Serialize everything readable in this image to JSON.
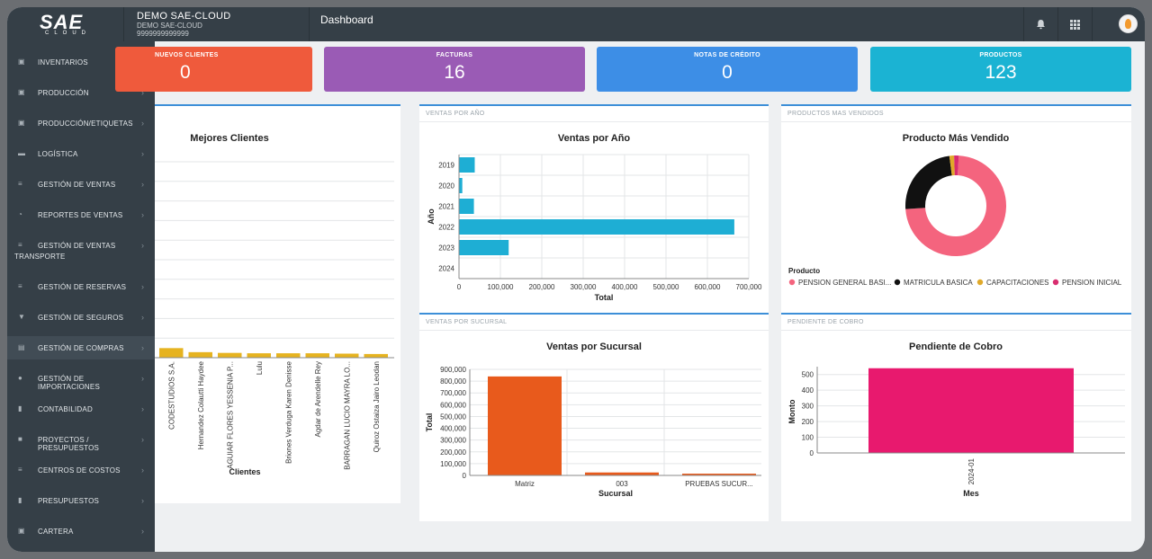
{
  "header": {
    "logo_text": "SAE",
    "logo_sub": "CLOUD",
    "company_name": "DEMO SAE-CLOUD",
    "company_line2": "DEMO SAE-CLOUD",
    "company_line3": "9999999999999",
    "page_title": "Dashboard",
    "bell_icon": "bell-icon",
    "apps_icon": "grid-icon"
  },
  "sidebar": {
    "items": [
      {
        "label": "INVENTARIOS",
        "icon": "cubes-icon"
      },
      {
        "label": "PRODUCCIÓN",
        "icon": "cubes-icon"
      },
      {
        "label": "PRODUCCIÓN/ETIQUETAS",
        "icon": "cubes-icon"
      },
      {
        "label": "LOGÍSTICA",
        "icon": "truck-icon"
      },
      {
        "label": "GESTIÓN DE VENTAS",
        "icon": "list-icon"
      },
      {
        "label": "REPORTES DE VENTAS",
        "icon": "pie-icon"
      },
      {
        "label": "GESTIÓN DE VENTAS",
        "label2": "TRANSPORTE",
        "icon": "list-icon"
      },
      {
        "label": "GESTIÓN DE RESERVAS",
        "icon": "list-icon"
      },
      {
        "label": "GESTIÓN DE SEGUROS",
        "icon": "shield-icon"
      },
      {
        "label": "GESTIÓN DE COMPRAS",
        "icon": "cart-icon"
      },
      {
        "label": "GESTIÓN DE IMPORTACIONES",
        "icon": "globe-icon"
      },
      {
        "label": "CONTABILIDAD",
        "icon": "book-icon"
      },
      {
        "label": "PROYECTOS / PRESUPUESTOS",
        "icon": "folder-icon"
      },
      {
        "label": "CENTROS DE COSTOS",
        "icon": "list-icon"
      },
      {
        "label": "PRESUPUESTOS",
        "icon": "book-icon"
      },
      {
        "label": "CARTERA",
        "icon": "wallet-icon"
      }
    ]
  },
  "stats": [
    {
      "title": "NUEVOS CLIENTES",
      "value": "0",
      "color": "#ef5a3c"
    },
    {
      "title": "FACTURAS",
      "value": "16",
      "color": "#9a5bb5"
    },
    {
      "title": "NOTAS DE CRÉDITO",
      "value": "0",
      "color": "#3d8ee6"
    },
    {
      "title": "PRODUCTOS",
      "value": "123",
      "color": "#1bb3d3"
    }
  ],
  "panels": {
    "ventas_anio": "VENTAS POR AÑO",
    "productos_vendidos": "PRODUCTOS MAS VENDIDOS",
    "ventas_sucursal": "VENTAS POR SUCURSAL",
    "pendiente_cobro": "PENDIENTE DE COBRO"
  },
  "chart_data": [
    {
      "id": "mejores",
      "type": "bar",
      "title": "Mejores Clientes",
      "xlabel": "Clientes",
      "ylabel": "",
      "categories": [
        "CODESTUDIOS S.A.",
        "Hernandez Colautti Haydee",
        "AGUIAR FLORES YESSENIA P...",
        "Lulu",
        "Briones Verduga Karen Denisse",
        "Agdar de Arendelle Rey",
        "BARRAGAN LUCIO MAYRA LO...",
        "Quiroz Ostaiza Jairo Leodan"
      ],
      "values": [
        26,
        15,
        13,
        12,
        12,
        12,
        11,
        10
      ],
      "ylim": [
        0,
        250
      ],
      "grid": true,
      "color": "#e6b320"
    },
    {
      "id": "anio",
      "type": "bar",
      "orientation": "horizontal",
      "title": "Ventas por Año",
      "xlabel": "Total",
      "ylabel": "Año",
      "categories": [
        "2019",
        "2020",
        "2021",
        "2022",
        "2023",
        "2024"
      ],
      "values": [
        38000,
        8000,
        36000,
        665000,
        120000,
        0
      ],
      "xlim": [
        0,
        700000
      ],
      "xticks": [
        "0",
        "100,000",
        "200,000",
        "300,000",
        "400,000",
        "500,000",
        "600,000",
        "700,000"
      ],
      "grid": true,
      "color": "#1eaed4"
    },
    {
      "id": "producto",
      "type": "pie",
      "title": "Producto Más Vendido",
      "legend_title": "Producto",
      "legend_position": "bottom",
      "labels": [
        "PENSION GENERAL BASI...",
        "MATRICULA BASICA",
        "CAPACITACIONES",
        "PENSION INICIAL"
      ],
      "values": [
        73,
        24,
        1.5,
        1.5
      ],
      "colors": [
        "#f4647e",
        "#111111",
        "#e0a92a",
        "#d82d6f"
      ]
    },
    {
      "id": "sucursal",
      "type": "bar",
      "title": "Ventas por Sucursal",
      "xlabel": "Sucursal",
      "ylabel": "Total",
      "categories": [
        "Matriz",
        "003",
        "PRUEBAS SUCUR..."
      ],
      "values": [
        840000,
        25000,
        15000
      ],
      "ylim": [
        0,
        900000
      ],
      "yticks": [
        "0",
        "100,000",
        "200,000",
        "300,000",
        "400,000",
        "500,000",
        "600,000",
        "700,000",
        "800,000",
        "900,000"
      ],
      "grid": true,
      "color": "#e85a1c"
    },
    {
      "id": "cobro",
      "type": "bar",
      "title": "Pendiente de Cobro",
      "xlabel": "Mes",
      "ylabel": "Monto",
      "categories": [
        "2024-01"
      ],
      "values": [
        540
      ],
      "ylim": [
        0,
        550
      ],
      "yticks": [
        "0",
        "100",
        "200",
        "300",
        "400",
        "500"
      ],
      "grid": true,
      "color": "#e8196e"
    }
  ]
}
